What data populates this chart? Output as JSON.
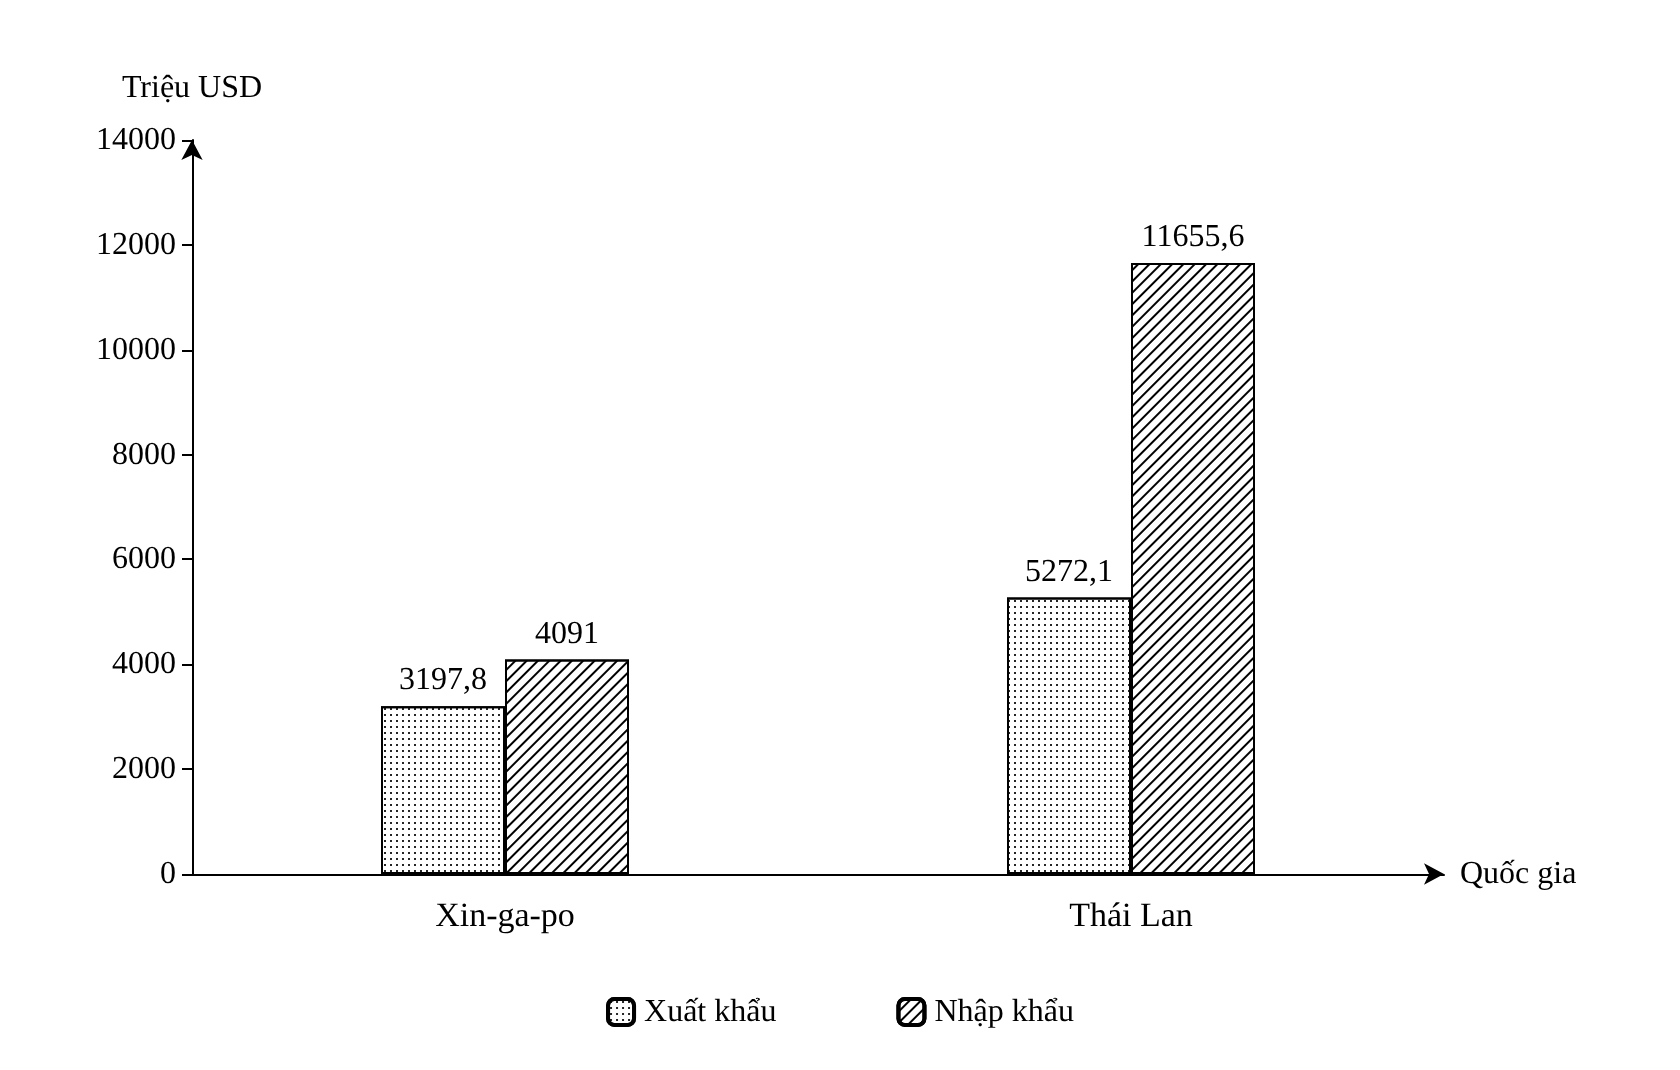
{
  "chart_data": {
    "type": "bar",
    "xlabel": "Quốc gia",
    "ylabel": "Triệu USD",
    "categories": [
      "Xin-ga-po",
      "Thái Lan"
    ],
    "series": [
      {
        "name": "Xuất khẩu",
        "color": "#ffffff",
        "values": [
          3197.8,
          5272.1
        ],
        "value_labels": [
          "3197,8",
          "5272,1"
        ]
      },
      {
        "name": "Nhập khẩu",
        "color": "#ffffff",
        "values": [
          4091,
          11655.6
        ],
        "value_labels": [
          "4091",
          "11655,6"
        ]
      }
    ],
    "ylim": [
      0,
      14000
    ],
    "yticks": [
      0,
      2000,
      4000,
      6000,
      8000,
      10000,
      12000,
      14000
    ],
    "grid": false,
    "legend": "bottom"
  }
}
